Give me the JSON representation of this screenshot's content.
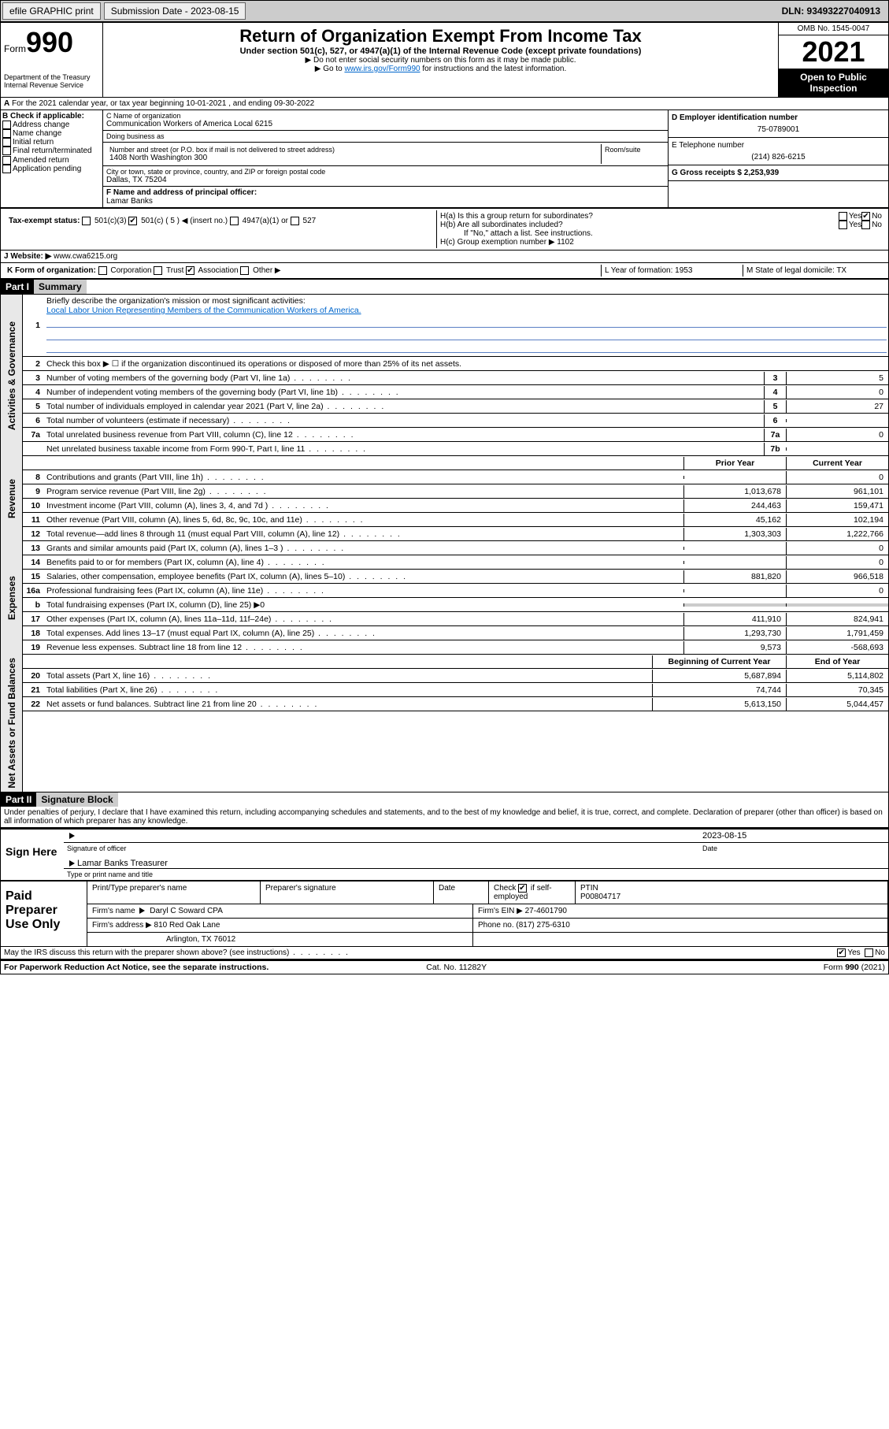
{
  "topbar": {
    "efile": "efile GRAPHIC print",
    "sub_label": "Submission Date - 2023-08-15",
    "dln": "DLN: 93493227040913"
  },
  "header": {
    "form_word": "Form",
    "form_num": "990",
    "title": "Return of Organization Exempt From Income Tax",
    "subtitle": "Under section 501(c), 527, or 4947(a)(1) of the Internal Revenue Code (except private foundations)",
    "note1": "▶ Do not enter social security numbers on this form as it may be made public.",
    "note2_pre": "▶ Go to ",
    "note2_link": "www.irs.gov/Form990",
    "note2_post": " for instructions and the latest information.",
    "omb": "OMB No. 1545-0047",
    "year": "2021",
    "open": "Open to Public Inspection",
    "dept": "Department of the Treasury\nInternal Revenue Service"
  },
  "line_a": "For the 2021 calendar year, or tax year beginning 10-01-2021    , and ending 09-30-2022",
  "col_b": {
    "header": "B Check if applicable:",
    "items": [
      "Address change",
      "Name change",
      "Initial return",
      "Final return/terminated",
      "Amended return",
      "Application pending"
    ]
  },
  "org": {
    "c_label": "C Name of organization",
    "name": "Communication Workers of America Local 6215",
    "dba_label": "Doing business as",
    "addr_label": "Number and street (or P.O. box if mail is not delivered to street address)",
    "room_label": "Room/suite",
    "addr": "1408 North Washington 300",
    "city_label": "City or town, state or province, country, and ZIP or foreign postal code",
    "city": "Dallas, TX  75204",
    "f_label": "F Name and address of principal officer:",
    "f_name": "Lamar Banks"
  },
  "right": {
    "d_label": "D Employer identification number",
    "d_val": "75-0789001",
    "e_label": "E Telephone number",
    "e_val": "(214) 826-6215",
    "g_label": "G Gross receipts $ 2,253,939",
    "ha": "H(a)  Is this a group return for subordinates?",
    "hb": "H(b)  Are all subordinates included?",
    "hb_note": "If \"No,\" attach a list. See instructions.",
    "hc": "H(c)  Group exemption number ▶   1102",
    "yes": "Yes",
    "no": "No"
  },
  "tax_exempt": {
    "label": "Tax-exempt status:",
    "opts": [
      "501(c)(3)",
      "501(c) ( 5 ) ◀ (insert no.)",
      "4947(a)(1) or",
      "527"
    ]
  },
  "website": {
    "label": "J   Website: ▶",
    "val": "www.cwa6215.org"
  },
  "k": "K Form of organization:",
  "k_opts": [
    "Corporation",
    "Trust",
    "Association",
    "Other ▶"
  ],
  "l": "L Year of formation: 1953",
  "m": "M State of legal domicile: TX",
  "part1": {
    "tag": "Part I",
    "title": "Summary",
    "q1": "Briefly describe the organization's mission or most significant activities:",
    "q1_ans": "Local Labor Union Representing Members of the Communication Workers of America.",
    "q2": "Check this box ▶ ☐  if the organization discontinued its operations or disposed of more than 25% of its net assets.",
    "rows_gov": [
      {
        "n": "3",
        "label": "Number of voting members of the governing body (Part VI, line 1a)",
        "box": "3",
        "v": "5"
      },
      {
        "n": "4",
        "label": "Number of independent voting members of the governing body (Part VI, line 1b)",
        "box": "4",
        "v": "0"
      },
      {
        "n": "5",
        "label": "Total number of individuals employed in calendar year 2021 (Part V, line 2a)",
        "box": "5",
        "v": "27"
      },
      {
        "n": "6",
        "label": "Total number of volunteers (estimate if necessary)",
        "box": "6",
        "v": ""
      },
      {
        "n": "7a",
        "label": "Total unrelated business revenue from Part VIII, column (C), line 12",
        "box": "7a",
        "v": "0"
      },
      {
        "n": "",
        "label": "Net unrelated business taxable income from Form 990-T, Part I, line 11",
        "box": "7b",
        "v": ""
      }
    ],
    "hdr_prior": "Prior Year",
    "hdr_curr": "Current Year",
    "rows_rev": [
      {
        "n": "8",
        "label": "Contributions and grants (Part VIII, line 1h)",
        "p": "",
        "c": "0"
      },
      {
        "n": "9",
        "label": "Program service revenue (Part VIII, line 2g)",
        "p": "1,013,678",
        "c": "961,101"
      },
      {
        "n": "10",
        "label": "Investment income (Part VIII, column (A), lines 3, 4, and 7d )",
        "p": "244,463",
        "c": "159,471"
      },
      {
        "n": "11",
        "label": "Other revenue (Part VIII, column (A), lines 5, 6d, 8c, 9c, 10c, and 11e)",
        "p": "45,162",
        "c": "102,194"
      },
      {
        "n": "12",
        "label": "Total revenue—add lines 8 through 11 (must equal Part VIII, column (A), line 12)",
        "p": "1,303,303",
        "c": "1,222,766"
      }
    ],
    "rows_exp": [
      {
        "n": "13",
        "label": "Grants and similar amounts paid (Part IX, column (A), lines 1–3 )",
        "p": "",
        "c": "0"
      },
      {
        "n": "14",
        "label": "Benefits paid to or for members (Part IX, column (A), line 4)",
        "p": "",
        "c": "0"
      },
      {
        "n": "15",
        "label": "Salaries, other compensation, employee benefits (Part IX, column (A), lines 5–10)",
        "p": "881,820",
        "c": "966,518"
      },
      {
        "n": "16a",
        "label": "Professional fundraising fees (Part IX, column (A), line 11e)",
        "p": "",
        "c": "0"
      },
      {
        "n": "b",
        "label": "Total fundraising expenses (Part IX, column (D), line 25) ▶0",
        "p": null,
        "c": null
      },
      {
        "n": "17",
        "label": "Other expenses (Part IX, column (A), lines 11a–11d, 11f–24e)",
        "p": "411,910",
        "c": "824,941"
      },
      {
        "n": "18",
        "label": "Total expenses. Add lines 13–17 (must equal Part IX, column (A), line 25)",
        "p": "1,293,730",
        "c": "1,791,459"
      },
      {
        "n": "19",
        "label": "Revenue less expenses. Subtract line 18 from line 12",
        "p": "9,573",
        "c": "-568,693"
      }
    ],
    "hdr_beg": "Beginning of Current Year",
    "hdr_end": "End of Year",
    "rows_net": [
      {
        "n": "20",
        "label": "Total assets (Part X, line 16)",
        "p": "5,687,894",
        "c": "5,114,802"
      },
      {
        "n": "21",
        "label": "Total liabilities (Part X, line 26)",
        "p": "74,744",
        "c": "70,345"
      },
      {
        "n": "22",
        "label": "Net assets or fund balances. Subtract line 21 from line 20",
        "p": "5,613,150",
        "c": "5,044,457"
      }
    ]
  },
  "vlabels": {
    "gov": "Activities & Governance",
    "rev": "Revenue",
    "exp": "Expenses",
    "net": "Net Assets or Fund Balances"
  },
  "part2": {
    "tag": "Part II",
    "title": "Signature Block",
    "decl": "Under penalties of perjury, I declare that I have examined this return, including accompanying schedules and statements, and to the best of my knowledge and belief, it is true, correct, and complete. Declaration of preparer (other than officer) is based on all information of which preparer has any knowledge."
  },
  "sign": {
    "here": "Sign Here",
    "sig_officer": "Signature of officer",
    "date": "Date",
    "date_val": "2023-08-15",
    "name": "Lamar Banks  Treasurer",
    "name_label": "Type or print name and title"
  },
  "paid": {
    "title": "Paid Preparer Use Only",
    "h1": "Print/Type preparer's name",
    "h2": "Preparer's signature",
    "h3": "Date",
    "h4_pre": "Check",
    "h4_post": "if self-employed",
    "h5": "PTIN",
    "ptin": "P00804717",
    "firm_label": "Firm's name",
    "firm": "Daryl C Soward CPA",
    "ein_label": "Firm's EIN ▶",
    "ein": "27-4601790",
    "addr_label": "Firm's address ▶",
    "addr1": "810 Red Oak Lane",
    "addr2": "Arlington, TX  76012",
    "phone_label": "Phone no.",
    "phone": "(817) 275-6310"
  },
  "footer": {
    "q": "May the IRS discuss this return with the preparer shown above? (see instructions)",
    "yes": "Yes",
    "no": "No",
    "pra": "For Paperwork Reduction Act Notice, see the separate instructions.",
    "cat": "Cat. No. 11282Y",
    "form": "Form 990 (2021)"
  }
}
